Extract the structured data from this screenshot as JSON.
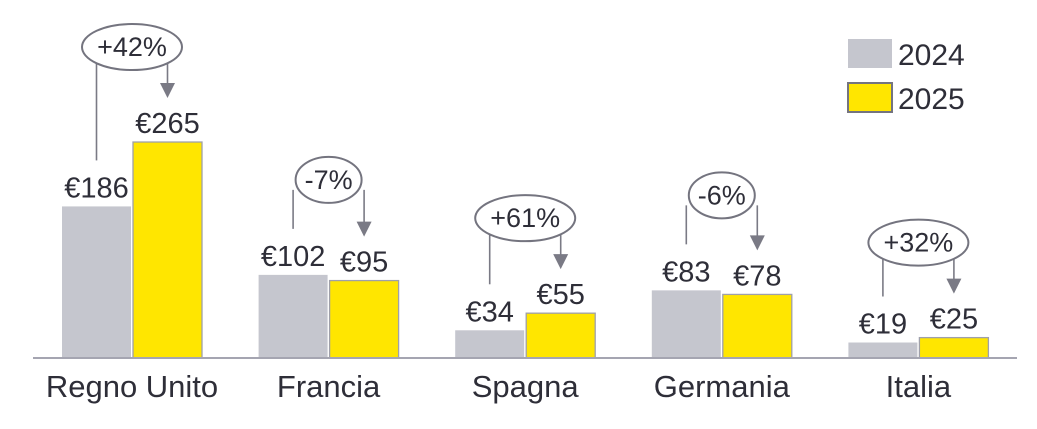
{
  "chart_data": {
    "type": "bar",
    "title": "",
    "xlabel": "",
    "ylabel": "",
    "grid": false,
    "ylim": [
      0,
      280
    ],
    "currency_prefix": "€",
    "categories": [
      "Regno Unito",
      "Francia",
      "Spagna",
      "Germania",
      "Italia"
    ],
    "series": [
      {
        "name": "2024",
        "values": [
          186,
          102,
          34,
          83,
          19
        ],
        "color": "#c5c6ce"
      },
      {
        "name": "2025",
        "values": [
          265,
          95,
          55,
          78,
          25
        ],
        "color": "#ffe600"
      }
    ],
    "value_labels": [
      [
        "€186",
        "€102",
        "€34",
        "€83",
        "€19"
      ],
      [
        "€265",
        "€95",
        "€55",
        "€78",
        "€25"
      ]
    ],
    "changes": [
      "+42%",
      "-7%",
      "+61%",
      "-6%",
      "+32%"
    ],
    "legend": {
      "position": "top-right",
      "entries": [
        "2024",
        "2025"
      ]
    }
  },
  "colors": {
    "bar_2024": "#c5c6ce",
    "bar_2025": "#ffe600",
    "bar_2025_border": "#9fa0aa",
    "axis": "#a5a5b1",
    "connector": "#7a7a85",
    "bubble_stroke": "#74747f",
    "bubble_fill": "#ffffff",
    "text": "#2e2e38"
  }
}
